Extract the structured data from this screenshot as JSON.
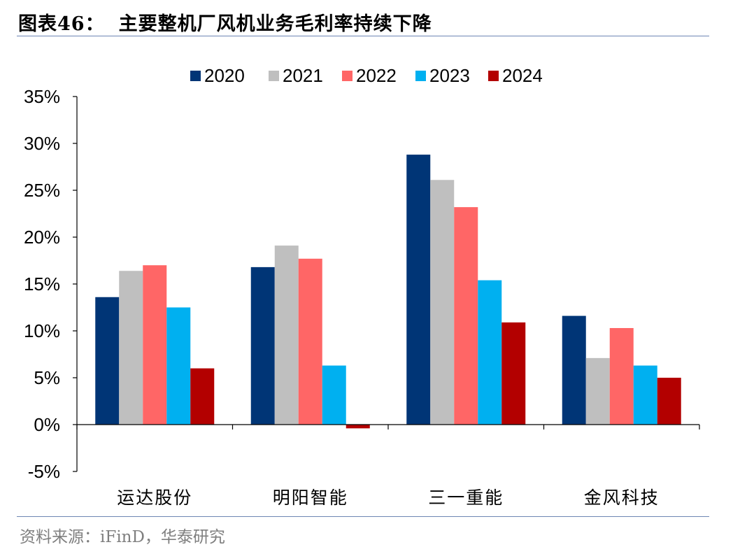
{
  "header": {
    "label": "图表46：",
    "title": "主要整机厂风机业务毛利率持续下降"
  },
  "source": "资料来源：iFinD，华泰研究",
  "chart_data": {
    "type": "bar",
    "categories": [
      "运达股份",
      "明阳智能",
      "三一重能",
      "金风科技"
    ],
    "series": [
      {
        "name": "2020",
        "color": "#003576",
        "values": [
          13.6,
          16.8,
          28.8,
          11.6
        ]
      },
      {
        "name": "2021",
        "color": "#bfbfbf",
        "values": [
          16.4,
          19.1,
          26.1,
          7.1
        ]
      },
      {
        "name": "2022",
        "color": "#ff6666",
        "values": [
          17.0,
          17.7,
          23.2,
          10.3
        ]
      },
      {
        "name": "2023",
        "color": "#00b0f0",
        "values": [
          12.5,
          6.3,
          15.4,
          6.3
        ]
      },
      {
        "name": "2024",
        "color": "#b30000",
        "values": [
          6.0,
          -0.4,
          10.9,
          5.0
        ]
      }
    ],
    "ylim": [
      -5,
      35
    ],
    "yticks": [
      -5,
      0,
      5,
      10,
      15,
      20,
      25,
      30,
      35
    ],
    "ytick_labels": [
      "-5%",
      "0%",
      "5%",
      "10%",
      "15%",
      "20%",
      "25%",
      "30%",
      "35%"
    ],
    "legend_position": "top",
    "grid": false,
    "xlabel": "",
    "ylabel": ""
  }
}
